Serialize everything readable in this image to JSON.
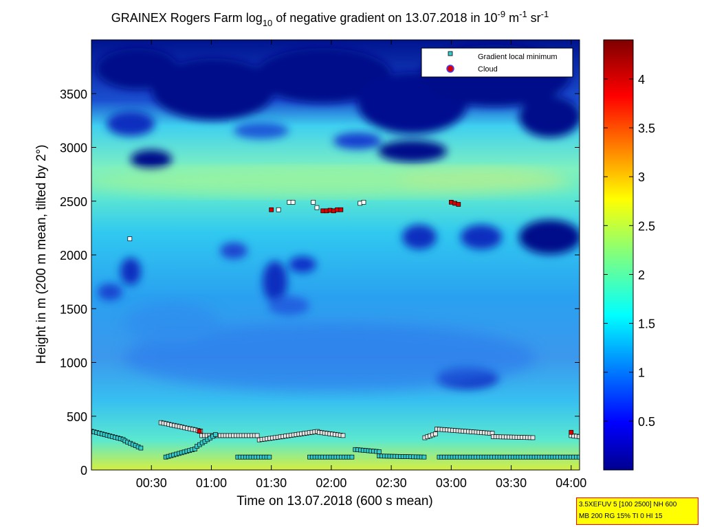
{
  "chart_data": {
    "type": "heatmap",
    "title": {
      "pre": "GRAINEX Rogers Farm log",
      "sub": "10",
      "mid": " of negative gradient on 13.07.2018 in 10",
      "sup1": "-9",
      "m_part": " m",
      "sup2": "-1",
      "sr_part": " sr",
      "sup3": "-1"
    },
    "xlabel": "Time on 13.07.2018 (600 s mean)",
    "ylabel": "Height in m (200 m mean, tilted by 2°)",
    "x_range_hours": [
      0.0,
      4.07
    ],
    "ylim": [
      0,
      4000
    ],
    "x_ticks": [
      {
        "h": 0.5,
        "label": "00:30"
      },
      {
        "h": 1.0,
        "label": "01:00"
      },
      {
        "h": 1.5,
        "label": "01:30"
      },
      {
        "h": 2.0,
        "label": "02:00"
      },
      {
        "h": 2.5,
        "label": "02:30"
      },
      {
        "h": 3.0,
        "label": "03:00"
      },
      {
        "h": 3.5,
        "label": "03:30"
      },
      {
        "h": 4.0,
        "label": "04:00"
      }
    ],
    "y_ticks": [
      0,
      500,
      1000,
      1500,
      2000,
      2500,
      3000,
      3500
    ],
    "colorbar": {
      "range": [
        0,
        4.4
      ],
      "ticks": [
        0.5,
        1,
        1.5,
        2,
        2.5,
        3,
        3.5,
        4
      ],
      "colormap": "jet"
    },
    "legend": {
      "position": "top-right",
      "entries": [
        {
          "label": "Gradient local minimum",
          "marker": "square",
          "color": "#33cccc"
        },
        {
          "label": "Cloud",
          "marker": "circle",
          "color": "#dd0000"
        }
      ]
    },
    "markers": {
      "cloud": [
        {
          "h": 0.9,
          "y": 360
        },
        {
          "h": 1.5,
          "y": 2420
        },
        {
          "h": 1.93,
          "y": 2410
        },
        {
          "h": 1.96,
          "y": 2410
        },
        {
          "h": 1.99,
          "y": 2415
        },
        {
          "h": 2.02,
          "y": 2410
        },
        {
          "h": 2.05,
          "y": 2420
        },
        {
          "h": 2.08,
          "y": 2420
        },
        {
          "h": 3.0,
          "y": 2490
        },
        {
          "h": 3.03,
          "y": 2480
        },
        {
          "h": 3.06,
          "y": 2470
        },
        {
          "h": 4.0,
          "y": 350
        }
      ],
      "white_squares": [
        {
          "h": 0.32,
          "y": 2150
        },
        {
          "h": 1.56,
          "y": 2420
        },
        {
          "h": 1.65,
          "y": 2490
        },
        {
          "h": 1.68,
          "y": 2490
        },
        {
          "h": 1.85,
          "y": 2490
        },
        {
          "h": 1.88,
          "y": 2440
        },
        {
          "h": 2.24,
          "y": 2480
        },
        {
          "h": 2.27,
          "y": 2490
        }
      ],
      "gradient_min_tracks": [
        {
          "h0": 0.0,
          "h1": 0.28,
          "y0": 360,
          "y1": 280,
          "color": "#33cccc"
        },
        {
          "h0": 0.28,
          "h1": 0.42,
          "y0": 270,
          "y1": 200,
          "color": "#33cccc"
        },
        {
          "h0": 0.58,
          "h1": 0.92,
          "y0": 440,
          "y1": 360,
          "color": "#e6e6e6"
        },
        {
          "h0": 0.92,
          "h1": 1.4,
          "y0": 320,
          "y1": 320,
          "color": "#e6e6e6"
        },
        {
          "h0": 1.4,
          "h1": 1.9,
          "y0": 280,
          "y1": 360,
          "color": "#e6e6e6"
        },
        {
          "h0": 1.9,
          "h1": 2.1,
          "y0": 350,
          "y1": 320,
          "color": "#e6e6e6"
        },
        {
          "h0": 0.62,
          "h1": 0.88,
          "y0": 120,
          "y1": 200,
          "color": "#33cccc"
        },
        {
          "h0": 0.88,
          "h1": 1.05,
          "y0": 220,
          "y1": 340,
          "color": "#33cccc"
        },
        {
          "h0": 1.22,
          "h1": 1.5,
          "y0": 120,
          "y1": 120,
          "color": "#33cccc"
        },
        {
          "h0": 1.82,
          "h1": 2.18,
          "y0": 120,
          "y1": 120,
          "color": "#33cccc"
        },
        {
          "h0": 2.2,
          "h1": 2.4,
          "y0": 190,
          "y1": 170,
          "color": "#33cccc"
        },
        {
          "h0": 2.4,
          "h1": 2.78,
          "y0": 130,
          "y1": 120,
          "color": "#33cccc"
        },
        {
          "h0": 2.78,
          "h1": 2.88,
          "y0": 300,
          "y1": 340,
          "color": "#e6e6e6"
        },
        {
          "h0": 2.88,
          "h1": 3.35,
          "y0": 380,
          "y1": 340,
          "color": "#e6e6e6"
        },
        {
          "h0": 3.35,
          "h1": 3.7,
          "y0": 310,
          "y1": 300,
          "color": "#e6e6e6"
        },
        {
          "h0": 2.9,
          "h1": 4.07,
          "y0": 120,
          "y1": 120,
          "color": "#33cccc"
        },
        {
          "h0": 4.0,
          "h1": 4.07,
          "y0": 320,
          "y1": 310,
          "color": "#e6e6e6"
        }
      ]
    }
  },
  "info_box": {
    "line1": "3.5XEFUV 5 [100 2500] NH 600",
    "line2": "MB 200 RG 15% TI 0 HI 15"
  }
}
